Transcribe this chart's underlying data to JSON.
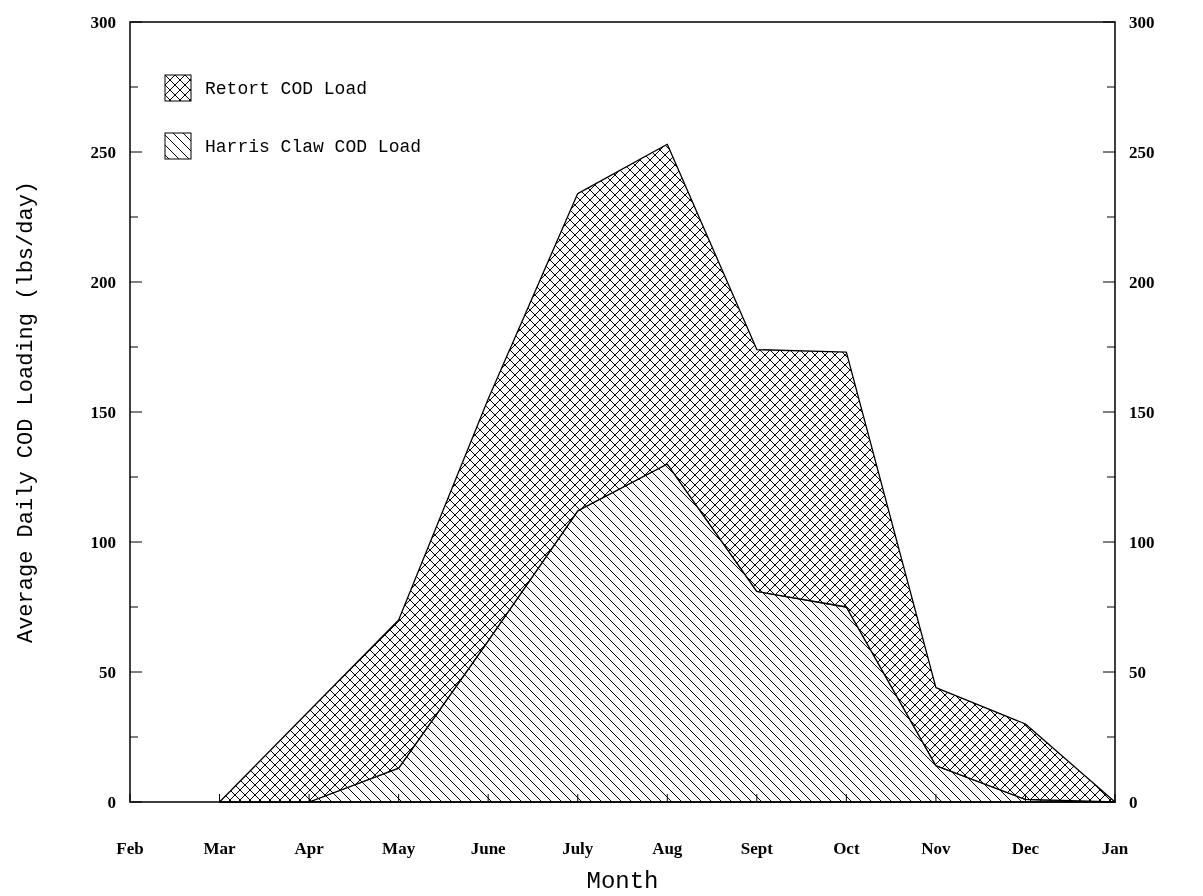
{
  "chart_data": {
    "type": "area",
    "xlabel": "Month",
    "ylabel": "Average Daily COD Loading (lbs/day)",
    "categories": [
      "Feb",
      "Mar",
      "Apr",
      "May",
      "June",
      "July",
      "Aug",
      "Sept",
      "Oct",
      "Nov",
      "Dec",
      "Jan"
    ],
    "stacked": true,
    "series": [
      {
        "name": "Harris Claw COD Load",
        "color": "#000000",
        "values": [
          null,
          0,
          0,
          13,
          62,
          112,
          130,
          81,
          75,
          14,
          1,
          0
        ]
      },
      {
        "name": "Retort COD Load",
        "color": "#000000",
        "values": [
          null,
          0,
          35,
          57,
          93,
          122,
          123,
          93,
          98,
          30,
          29,
          0
        ]
      }
    ],
    "ylim": [
      0,
      300
    ],
    "yticks": [
      0,
      {
        "value": 25,
        "label": null
      },
      50,
      {
        "value": 75,
        "label": null
      },
      100,
      {
        "value": 125,
        "label": null
      },
      150,
      {
        "value": 175,
        "label": null
      },
      200,
      {
        "value": 225,
        "label": null
      },
      250,
      {
        "value": 275,
        "label": null
      },
      300
    ],
    "y2lim": [
      0,
      300
    ],
    "y2ticks": [
      0,
      {
        "value": 25,
        "label": null
      },
      50,
      {
        "value": 75,
        "label": null
      },
      100,
      {
        "value": 125,
        "label": null
      },
      150,
      {
        "value": 175,
        "label": null
      },
      200,
      {
        "value": 225,
        "label": null
      },
      250,
      {
        "value": 275,
        "label": null
      },
      300
    ],
    "legend": "top left",
    "grid": false
  }
}
